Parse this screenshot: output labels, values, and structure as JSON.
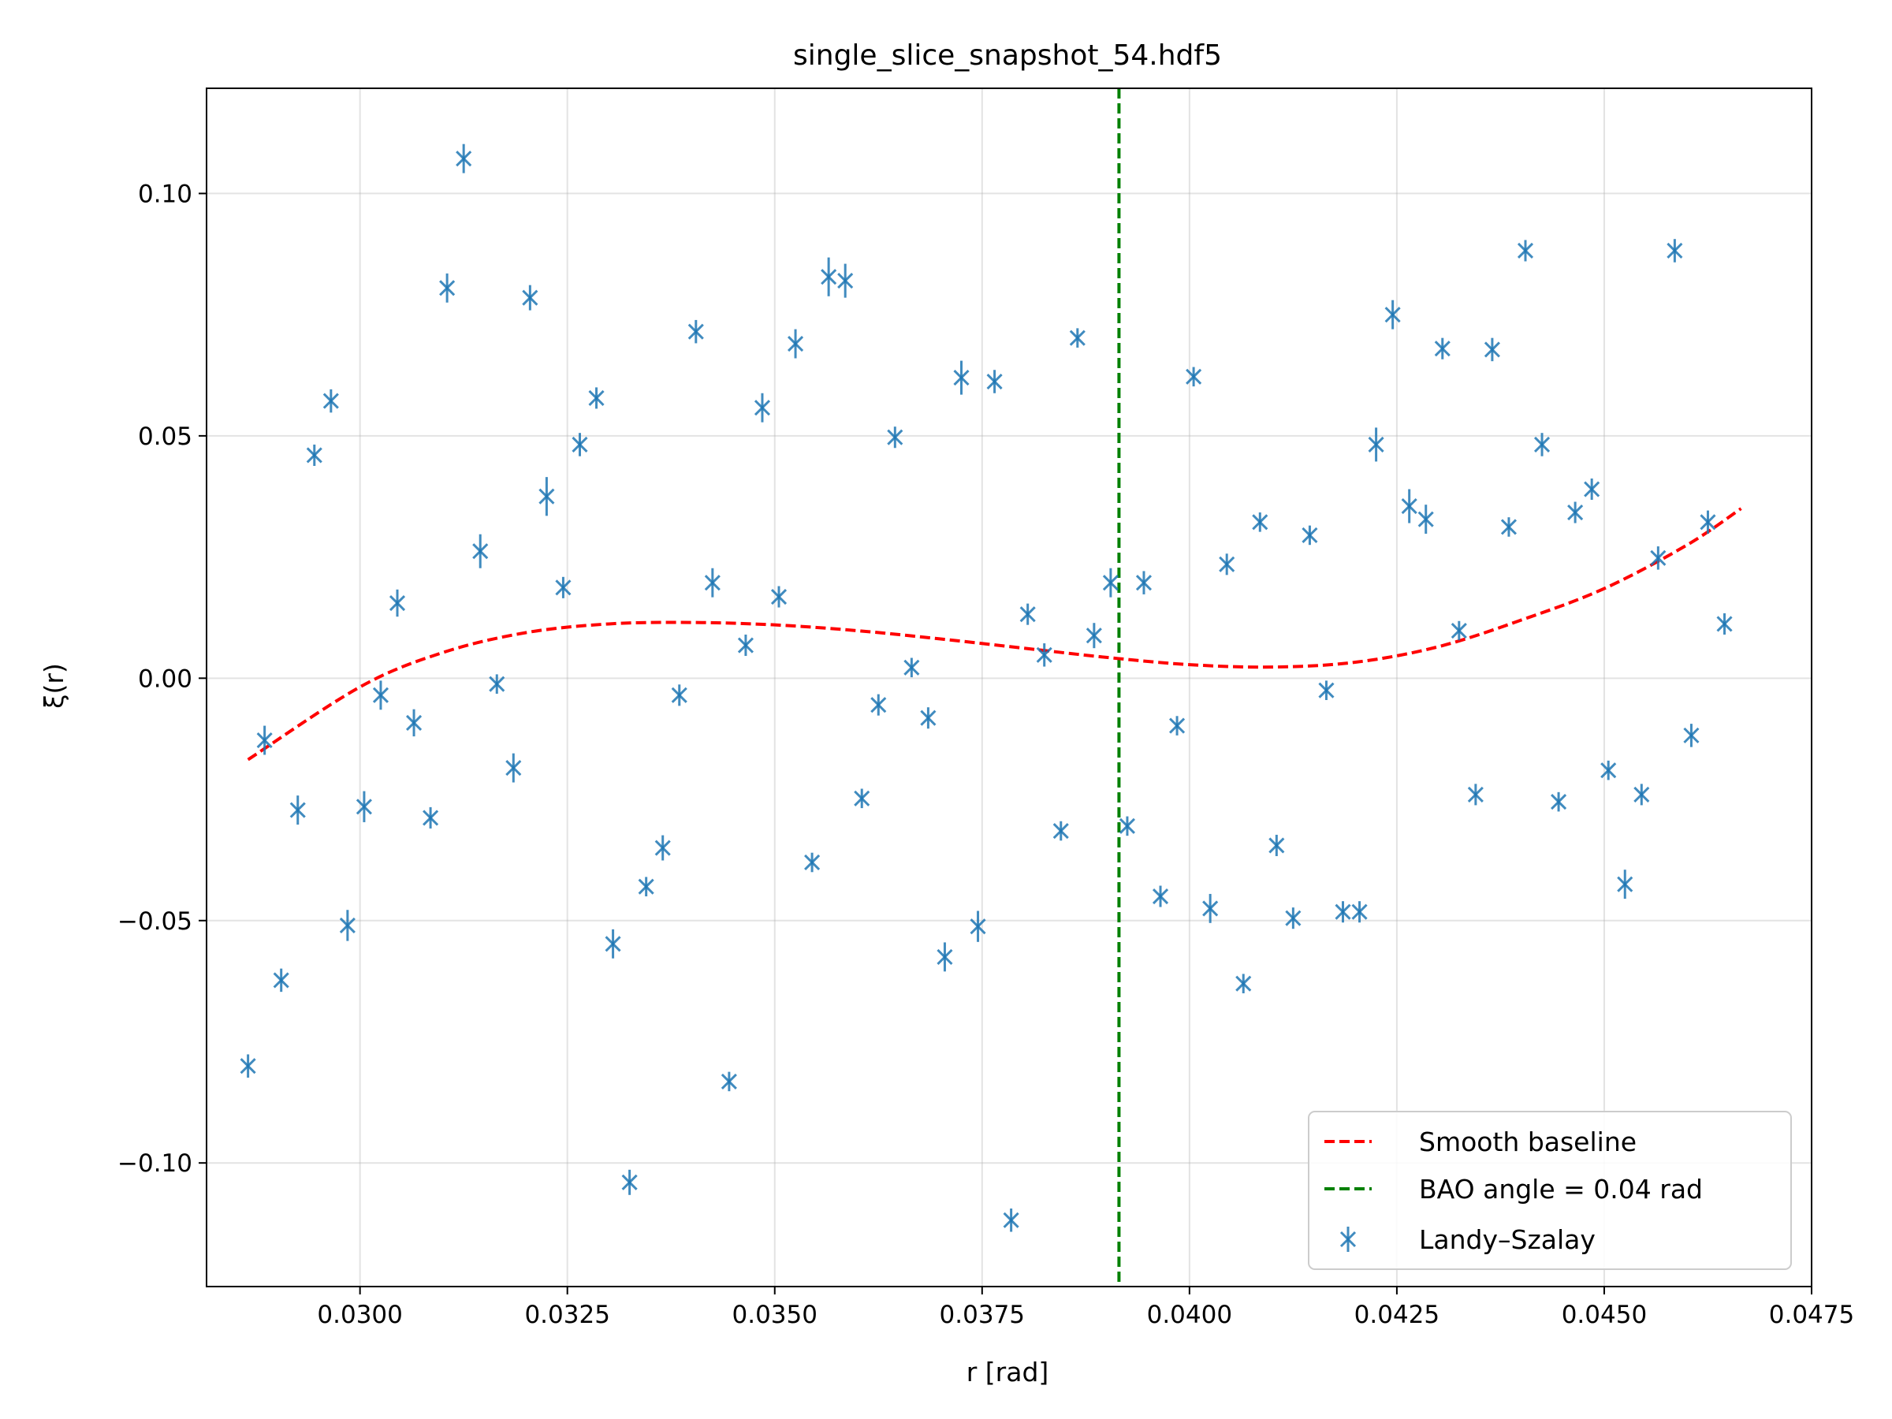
{
  "chart_data": {
    "type": "scatter",
    "title": "single_slice_snapshot_54.hdf5",
    "xlabel": "r [rad]",
    "ylabel": "ξ(r)",
    "xlim": [
      0.02815,
      0.0475
    ],
    "ylim": [
      -0.1255,
      0.1217
    ],
    "xticks": [
      0.03,
      0.0325,
      0.035,
      0.0375,
      0.04,
      0.0425,
      0.045,
      0.0475
    ],
    "xtick_labels": [
      "0.0300",
      "0.0325",
      "0.0350",
      "0.0375",
      "0.0400",
      "0.0425",
      "0.0450",
      "0.0475"
    ],
    "yticks": [
      0.1,
      0.05,
      0.0,
      -0.05,
      -0.1
    ],
    "ytick_labels": [
      "0.10",
      "0.05",
      "0.00",
      "−0.05",
      "−0.10"
    ],
    "grid": true,
    "legend_position": "lower-right",
    "legend": [
      {
        "label": "Smooth baseline",
        "kind": "dashed-line",
        "color": "#ff0000"
      },
      {
        "label": "BAO angle = 0.04 rad",
        "kind": "dashed-line",
        "color": "#008000"
      },
      {
        "label": "Landy–Szalay",
        "kind": "errorbar-marker",
        "color": "#1f77b4"
      }
    ],
    "bao_line": {
      "x": 0.03915,
      "color": "#008000"
    },
    "baseline": {
      "color": "#ff0000",
      "x": [
        0.02865,
        0.03,
        0.031,
        0.032,
        0.033,
        0.034,
        0.035,
        0.036,
        0.037,
        0.038,
        0.039,
        0.04,
        0.041,
        0.042,
        0.043,
        0.044,
        0.045,
        0.046,
        0.04665
      ],
      "y": [
        -0.0168,
        -0.0018,
        0.0053,
        0.0094,
        0.0112,
        0.0115,
        0.011,
        0.0098,
        0.0081,
        0.0062,
        0.0043,
        0.0028,
        0.0023,
        0.0033,
        0.0065,
        0.012,
        0.0185,
        0.0275,
        0.035
      ]
    },
    "series": [
      {
        "name": "Landy–Szalay",
        "color": "#1f77b4",
        "points": [
          {
            "x": 0.02865,
            "y": -0.08,
            "err": 0.0024
          },
          {
            "x": 0.02885,
            "y": -0.0128,
            "err": 0.003
          },
          {
            "x": 0.02905,
            "y": -0.0623,
            "err": 0.0024
          },
          {
            "x": 0.02925,
            "y": -0.0272,
            "err": 0.003
          },
          {
            "x": 0.02945,
            "y": 0.046,
            "err": 0.0022
          },
          {
            "x": 0.02965,
            "y": 0.0572,
            "err": 0.0024
          },
          {
            "x": 0.02985,
            "y": -0.051,
            "err": 0.0032
          },
          {
            "x": 0.03005,
            "y": -0.0265,
            "err": 0.0032
          },
          {
            "x": 0.03025,
            "y": -0.0035,
            "err": 0.003
          },
          {
            "x": 0.03045,
            "y": 0.0155,
            "err": 0.0028
          },
          {
            "x": 0.03065,
            "y": -0.0092,
            "err": 0.0028
          },
          {
            "x": 0.03085,
            "y": -0.0288,
            "err": 0.0022
          },
          {
            "x": 0.03105,
            "y": 0.0805,
            "err": 0.003
          },
          {
            "x": 0.03125,
            "y": 0.1072,
            "err": 0.003
          },
          {
            "x": 0.03145,
            "y": 0.0262,
            "err": 0.0035
          },
          {
            "x": 0.03165,
            "y": -0.0012,
            "err": 0.002
          },
          {
            "x": 0.03185,
            "y": -0.0185,
            "err": 0.003
          },
          {
            "x": 0.03205,
            "y": 0.0785,
            "err": 0.0026
          },
          {
            "x": 0.03225,
            "y": 0.0375,
            "err": 0.004
          },
          {
            "x": 0.03245,
            "y": 0.0187,
            "err": 0.0022
          },
          {
            "x": 0.03265,
            "y": 0.0482,
            "err": 0.0024
          },
          {
            "x": 0.03285,
            "y": 0.0578,
            "err": 0.0022
          },
          {
            "x": 0.03305,
            "y": -0.0548,
            "err": 0.003
          },
          {
            "x": 0.03325,
            "y": -0.104,
            "err": 0.0026
          },
          {
            "x": 0.03345,
            "y": -0.043,
            "err": 0.002
          },
          {
            "x": 0.03365,
            "y": -0.035,
            "err": 0.0026
          },
          {
            "x": 0.03385,
            "y": -0.0035,
            "err": 0.0022
          },
          {
            "x": 0.03405,
            "y": 0.0715,
            "err": 0.0024
          },
          {
            "x": 0.03425,
            "y": 0.0197,
            "err": 0.003
          },
          {
            "x": 0.03445,
            "y": -0.0832,
            "err": 0.002
          },
          {
            "x": 0.03465,
            "y": 0.0068,
            "err": 0.0022
          },
          {
            "x": 0.03485,
            "y": 0.0558,
            "err": 0.003
          },
          {
            "x": 0.03505,
            "y": 0.0168,
            "err": 0.0022
          },
          {
            "x": 0.03525,
            "y": 0.069,
            "err": 0.003
          },
          {
            "x": 0.03545,
            "y": -0.038,
            "err": 0.002
          },
          {
            "x": 0.03565,
            "y": 0.0828,
            "err": 0.004
          },
          {
            "x": 0.03585,
            "y": 0.082,
            "err": 0.0035
          },
          {
            "x": 0.03605,
            "y": -0.0248,
            "err": 0.002
          },
          {
            "x": 0.03625,
            "y": -0.0055,
            "err": 0.0022
          },
          {
            "x": 0.03645,
            "y": 0.0497,
            "err": 0.0022
          },
          {
            "x": 0.03665,
            "y": 0.0022,
            "err": 0.002
          },
          {
            "x": 0.03685,
            "y": -0.0082,
            "err": 0.0022
          },
          {
            "x": 0.03705,
            "y": -0.0575,
            "err": 0.003
          },
          {
            "x": 0.03725,
            "y": 0.062,
            "err": 0.0035
          },
          {
            "x": 0.03745,
            "y": -0.0512,
            "err": 0.0032
          },
          {
            "x": 0.03765,
            "y": 0.0612,
            "err": 0.0024
          },
          {
            "x": 0.03785,
            "y": -0.1118,
            "err": 0.0024
          },
          {
            "x": 0.03805,
            "y": 0.0132,
            "err": 0.0022
          },
          {
            "x": 0.03825,
            "y": 0.0048,
            "err": 0.0024
          },
          {
            "x": 0.03845,
            "y": -0.0315,
            "err": 0.002
          },
          {
            "x": 0.03865,
            "y": 0.0702,
            "err": 0.002
          },
          {
            "x": 0.03885,
            "y": 0.0088,
            "err": 0.0026
          },
          {
            "x": 0.03905,
            "y": 0.0197,
            "err": 0.003
          },
          {
            "x": 0.03925,
            "y": -0.0305,
            "err": 0.002
          },
          {
            "x": 0.03945,
            "y": 0.0197,
            "err": 0.0024
          },
          {
            "x": 0.03965,
            "y": -0.045,
            "err": 0.0022
          },
          {
            "x": 0.03985,
            "y": -0.0098,
            "err": 0.002
          },
          {
            "x": 0.04005,
            "y": 0.0622,
            "err": 0.002
          },
          {
            "x": 0.04025,
            "y": -0.0475,
            "err": 0.003
          },
          {
            "x": 0.04045,
            "y": 0.0235,
            "err": 0.0022
          },
          {
            "x": 0.04065,
            "y": -0.063,
            "err": 0.002
          },
          {
            "x": 0.04085,
            "y": 0.0322,
            "err": 0.002
          },
          {
            "x": 0.04105,
            "y": -0.0345,
            "err": 0.0022
          },
          {
            "x": 0.04125,
            "y": -0.0495,
            "err": 0.0022
          },
          {
            "x": 0.04145,
            "y": 0.0295,
            "err": 0.002
          },
          {
            "x": 0.04165,
            "y": -0.0025,
            "err": 0.002
          },
          {
            "x": 0.04185,
            "y": -0.0482,
            "err": 0.0022
          },
          {
            "x": 0.04205,
            "y": -0.0482,
            "err": 0.0022
          },
          {
            "x": 0.04225,
            "y": 0.0482,
            "err": 0.0035
          },
          {
            "x": 0.04245,
            "y": 0.075,
            "err": 0.003
          },
          {
            "x": 0.04265,
            "y": 0.0355,
            "err": 0.0035
          },
          {
            "x": 0.04285,
            "y": 0.0328,
            "err": 0.003
          },
          {
            "x": 0.04305,
            "y": 0.068,
            "err": 0.0022
          },
          {
            "x": 0.04325,
            "y": 0.0098,
            "err": 0.002
          },
          {
            "x": 0.04345,
            "y": -0.024,
            "err": 0.0022
          },
          {
            "x": 0.04365,
            "y": 0.0678,
            "err": 0.0024
          },
          {
            "x": 0.04385,
            "y": 0.0312,
            "err": 0.002
          },
          {
            "x": 0.04405,
            "y": 0.0882,
            "err": 0.0022
          },
          {
            "x": 0.04425,
            "y": 0.0482,
            "err": 0.0024
          },
          {
            "x": 0.04445,
            "y": -0.0255,
            "err": 0.002
          },
          {
            "x": 0.04465,
            "y": 0.0342,
            "err": 0.0022
          },
          {
            "x": 0.04485,
            "y": 0.039,
            "err": 0.0022
          },
          {
            "x": 0.04505,
            "y": -0.019,
            "err": 0.002
          },
          {
            "x": 0.04525,
            "y": -0.0425,
            "err": 0.003
          },
          {
            "x": 0.04545,
            "y": -0.024,
            "err": 0.0022
          },
          {
            "x": 0.04565,
            "y": 0.0248,
            "err": 0.0024
          },
          {
            "x": 0.04585,
            "y": 0.0882,
            "err": 0.0024
          },
          {
            "x": 0.04605,
            "y": -0.0118,
            "err": 0.0024
          },
          {
            "x": 0.04625,
            "y": 0.0322,
            "err": 0.0024
          },
          {
            "x": 0.04645,
            "y": 0.0112,
            "err": 0.0022
          }
        ]
      }
    ]
  }
}
